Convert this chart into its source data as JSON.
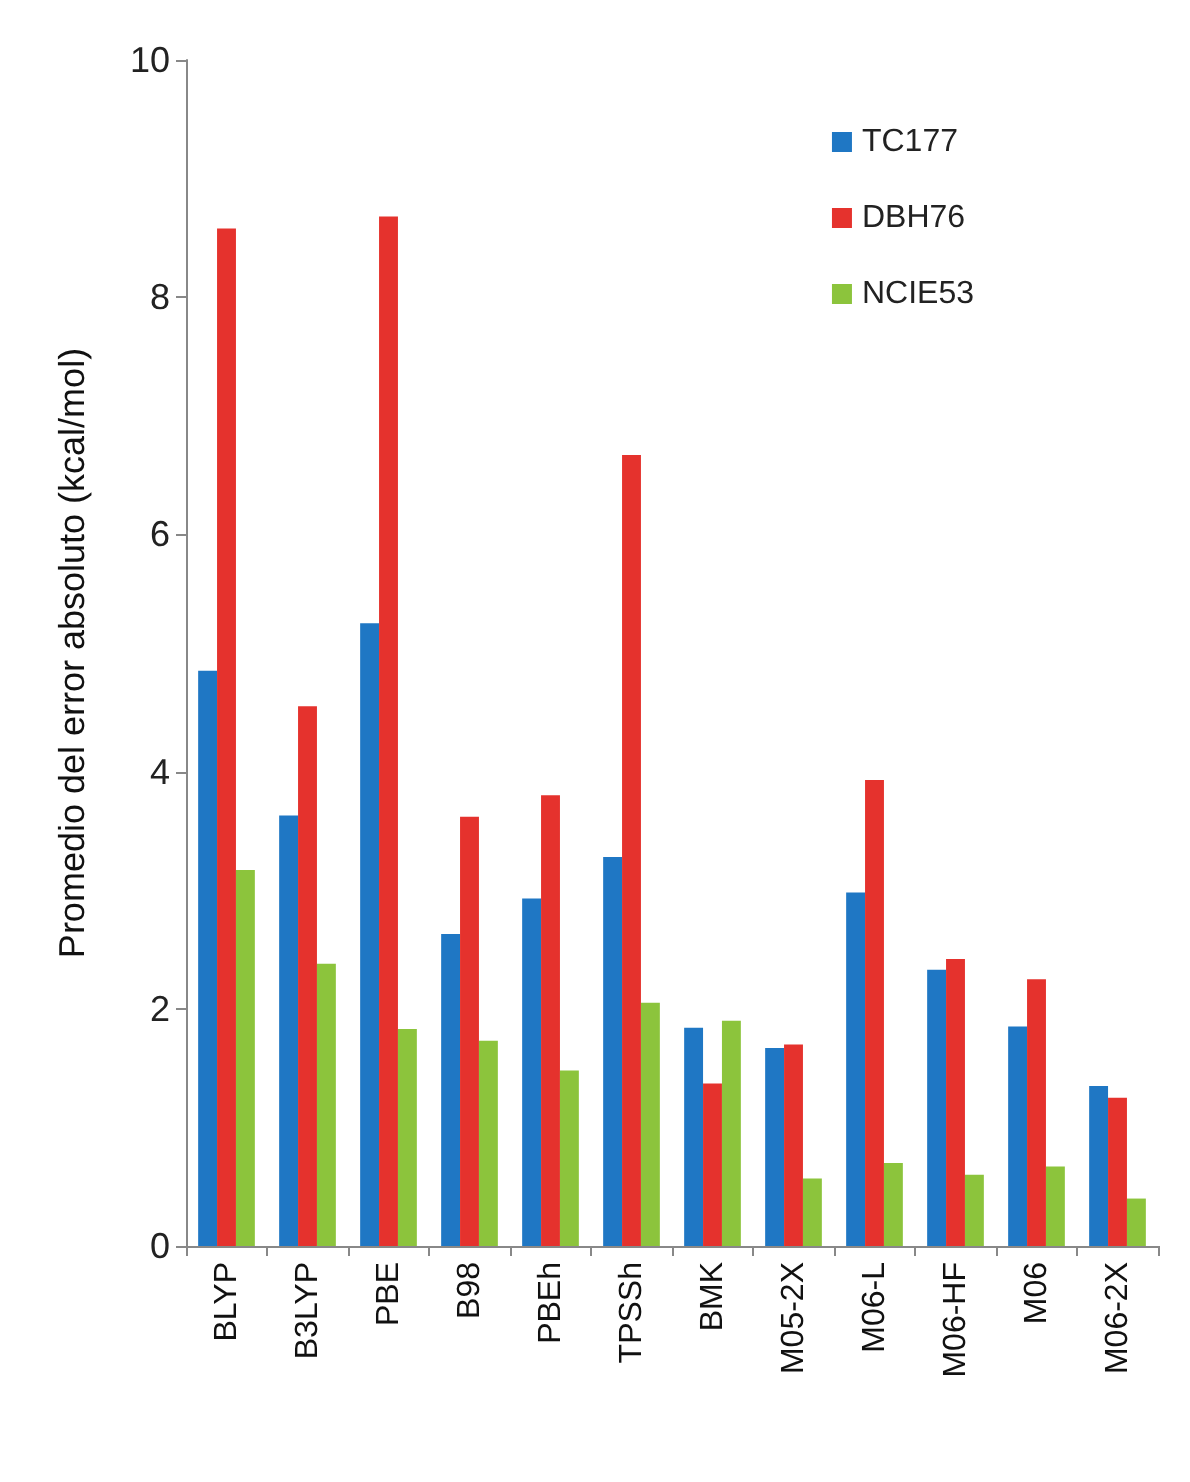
{
  "chart_data": {
    "type": "bar",
    "ylabel": "Promedio del error absoluto (kcal/mol)",
    "categories": [
      "BLYP",
      "B3LYP",
      "PBE",
      "B98",
      "PBEh",
      "TPSSh",
      "BMK",
      "M05-2X",
      "M06-L",
      "M06-HF",
      "M06",
      "M06-2X"
    ],
    "series": [
      {
        "name": "TC177",
        "color": "#1f77c4",
        "values": [
          4.85,
          3.63,
          5.25,
          2.63,
          2.93,
          3.28,
          1.84,
          1.67,
          2.98,
          2.33,
          1.85,
          1.35
        ]
      },
      {
        "name": "DBH76",
        "color": "#e5322d",
        "values": [
          8.58,
          4.55,
          8.68,
          3.62,
          3.8,
          6.67,
          1.37,
          1.7,
          3.93,
          2.42,
          2.25,
          1.25
        ]
      },
      {
        "name": "NCIE53",
        "color": "#8cc43c",
        "values": [
          3.17,
          2.38,
          1.83,
          1.73,
          1.48,
          2.05,
          1.9,
          0.57,
          0.7,
          0.6,
          0.67,
          0.4
        ]
      }
    ],
    "ylim": [
      0,
      10
    ],
    "yticks": [
      0,
      2,
      4,
      6,
      8,
      10
    ],
    "grid": false,
    "legend": "top right"
  }
}
